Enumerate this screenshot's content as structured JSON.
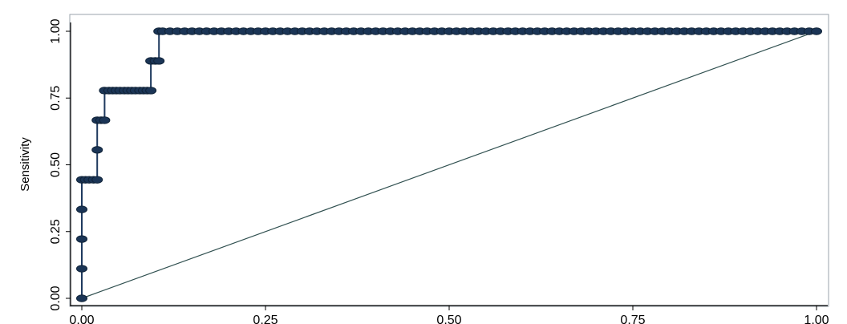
{
  "chart_data": {
    "type": "line",
    "title": "",
    "xlabel": "",
    "ylabel": "Sensitivity",
    "xlim": [
      0,
      1
    ],
    "ylim": [
      0,
      1
    ],
    "xticks": [
      "0.00",
      "0.25",
      "0.50",
      "0.75",
      "1.00"
    ],
    "yticks": [
      "0.00",
      "0.25",
      "0.50",
      "0.75",
      "1.00"
    ],
    "grid": true,
    "colors": {
      "curve": "#1f3a5f",
      "marker": "#1b3556",
      "reference": "#2f4f4f",
      "grid": "#e6edf2"
    },
    "series": [
      {
        "style": "step-with-markers",
        "points": [
          [
            0.0,
            0.0
          ],
          [
            0.0,
            0.111
          ],
          [
            0.0,
            0.222
          ],
          [
            0.0,
            0.333
          ],
          [
            0.0,
            0.444
          ],
          [
            0.005,
            0.444
          ],
          [
            0.01,
            0.444
          ],
          [
            0.016,
            0.444
          ],
          [
            0.021,
            0.444
          ],
          [
            0.021,
            0.556
          ],
          [
            0.021,
            0.667
          ],
          [
            0.026,
            0.667
          ],
          [
            0.031,
            0.667
          ],
          [
            0.031,
            0.778
          ],
          [
            0.037,
            0.778
          ],
          [
            0.042,
            0.778
          ],
          [
            0.047,
            0.778
          ],
          [
            0.052,
            0.778
          ],
          [
            0.058,
            0.778
          ],
          [
            0.063,
            0.778
          ],
          [
            0.068,
            0.778
          ],
          [
            0.073,
            0.778
          ],
          [
            0.079,
            0.778
          ],
          [
            0.084,
            0.778
          ],
          [
            0.089,
            0.778
          ],
          [
            0.094,
            0.778
          ],
          [
            0.094,
            0.889
          ],
          [
            0.1,
            0.889
          ],
          [
            0.105,
            0.889
          ],
          [
            0.105,
            1.0
          ],
          [
            0.11,
            1.0
          ],
          [
            0.12,
            1.0
          ],
          [
            0.13,
            1.0
          ],
          [
            0.14,
            1.0
          ],
          [
            0.15,
            1.0
          ],
          [
            0.16,
            1.0
          ],
          [
            0.17,
            1.0
          ],
          [
            0.18,
            1.0
          ],
          [
            0.19,
            1.0
          ],
          [
            0.2,
            1.0
          ],
          [
            0.21,
            1.0
          ],
          [
            0.22,
            1.0
          ],
          [
            0.23,
            1.0
          ],
          [
            0.24,
            1.0
          ],
          [
            0.25,
            1.0
          ],
          [
            0.26,
            1.0
          ],
          [
            0.27,
            1.0
          ],
          [
            0.28,
            1.0
          ],
          [
            0.29,
            1.0
          ],
          [
            0.3,
            1.0
          ],
          [
            0.31,
            1.0
          ],
          [
            0.32,
            1.0
          ],
          [
            0.33,
            1.0
          ],
          [
            0.34,
            1.0
          ],
          [
            0.35,
            1.0
          ],
          [
            0.36,
            1.0
          ],
          [
            0.37,
            1.0
          ],
          [
            0.38,
            1.0
          ],
          [
            0.39,
            1.0
          ],
          [
            0.4,
            1.0
          ],
          [
            0.41,
            1.0
          ],
          [
            0.42,
            1.0
          ],
          [
            0.43,
            1.0
          ],
          [
            0.44,
            1.0
          ],
          [
            0.45,
            1.0
          ],
          [
            0.46,
            1.0
          ],
          [
            0.47,
            1.0
          ],
          [
            0.48,
            1.0
          ],
          [
            0.49,
            1.0
          ],
          [
            0.5,
            1.0
          ],
          [
            0.51,
            1.0
          ],
          [
            0.52,
            1.0
          ],
          [
            0.53,
            1.0
          ],
          [
            0.54,
            1.0
          ],
          [
            0.55,
            1.0
          ],
          [
            0.56,
            1.0
          ],
          [
            0.57,
            1.0
          ],
          [
            0.58,
            1.0
          ],
          [
            0.59,
            1.0
          ],
          [
            0.6,
            1.0
          ],
          [
            0.61,
            1.0
          ],
          [
            0.62,
            1.0
          ],
          [
            0.63,
            1.0
          ],
          [
            0.64,
            1.0
          ],
          [
            0.65,
            1.0
          ],
          [
            0.66,
            1.0
          ],
          [
            0.67,
            1.0
          ],
          [
            0.68,
            1.0
          ],
          [
            0.69,
            1.0
          ],
          [
            0.7,
            1.0
          ],
          [
            0.71,
            1.0
          ],
          [
            0.72,
            1.0
          ],
          [
            0.73,
            1.0
          ],
          [
            0.74,
            1.0
          ],
          [
            0.75,
            1.0
          ],
          [
            0.76,
            1.0
          ],
          [
            0.77,
            1.0
          ],
          [
            0.78,
            1.0
          ],
          [
            0.79,
            1.0
          ],
          [
            0.8,
            1.0
          ],
          [
            0.81,
            1.0
          ],
          [
            0.82,
            1.0
          ],
          [
            0.83,
            1.0
          ],
          [
            0.84,
            1.0
          ],
          [
            0.85,
            1.0
          ],
          [
            0.86,
            1.0
          ],
          [
            0.87,
            1.0
          ],
          [
            0.88,
            1.0
          ],
          [
            0.89,
            1.0
          ],
          [
            0.9,
            1.0
          ],
          [
            0.91,
            1.0
          ],
          [
            0.92,
            1.0
          ],
          [
            0.93,
            1.0
          ],
          [
            0.94,
            1.0
          ],
          [
            0.95,
            1.0
          ],
          [
            0.96,
            1.0
          ],
          [
            0.97,
            1.0
          ],
          [
            0.98,
            1.0
          ],
          [
            0.99,
            1.0
          ],
          [
            1.0,
            1.0
          ]
        ]
      },
      {
        "style": "reference-line",
        "points": [
          [
            0,
            0
          ],
          [
            1,
            1
          ]
        ]
      }
    ]
  }
}
